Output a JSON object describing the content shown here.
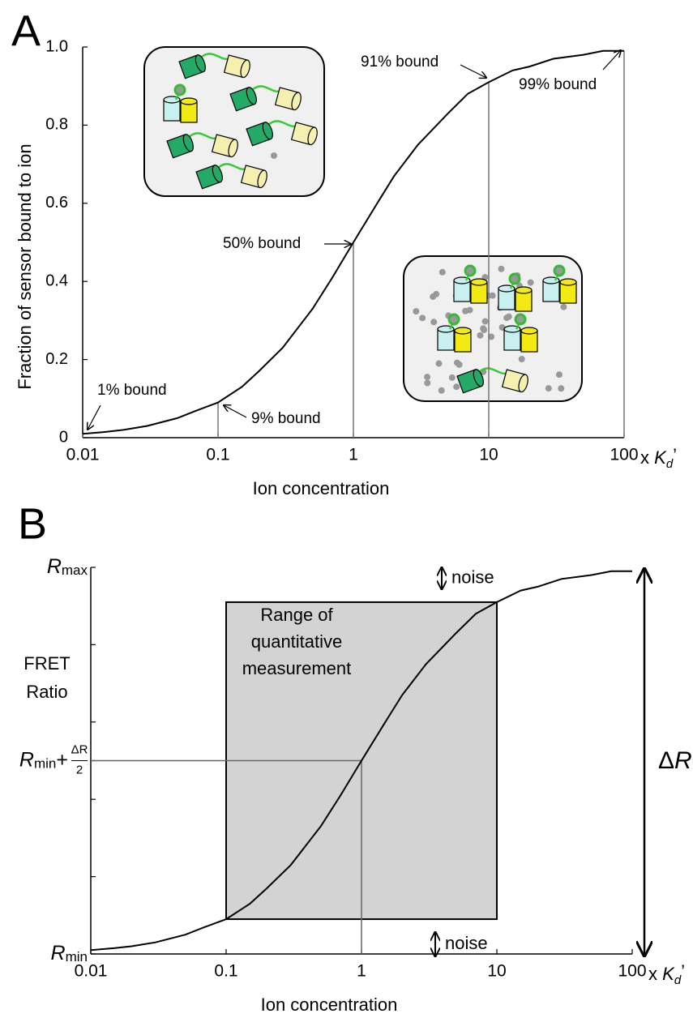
{
  "chart_data": [
    {
      "type": "line",
      "panel_label": "A",
      "xlabel": "Ion concentration",
      "x_unit": [
        "x ",
        "K",
        "d",
        "’"
      ],
      "ylabel": "Fraction of sensor bound to ion",
      "x": [
        0.01,
        0.015,
        0.02,
        0.03,
        0.05,
        0.07,
        0.1,
        0.15,
        0.2,
        0.3,
        0.5,
        0.7,
        1,
        1.5,
        2,
        3,
        5,
        7,
        10,
        15,
        20,
        30,
        50,
        70,
        100
      ],
      "values": [
        0.01,
        0.015,
        0.02,
        0.03,
        0.05,
        0.07,
        0.09,
        0.13,
        0.17,
        0.23,
        0.33,
        0.41,
        0.5,
        0.6,
        0.67,
        0.75,
        0.83,
        0.88,
        0.91,
        0.94,
        0.95,
        0.97,
        0.98,
        0.99,
        0.99
      ],
      "color": "#000000",
      "xscale": "log",
      "xlim": [
        0.01,
        100
      ],
      "xticks": [
        0.01,
        0.1,
        1,
        10,
        100
      ],
      "ylim": [
        0,
        1
      ],
      "yticks": [
        0,
        0.2,
        0.4,
        0.6,
        0.8,
        {
          "value": 1,
          "label": "1.0"
        }
      ],
      "markers": [
        {
          "x": 0.01,
          "y": 0.01,
          "label": "1% bound"
        },
        {
          "x": 0.1,
          "y": 0.09,
          "label": "9% bound"
        },
        {
          "x": 1,
          "y": 0.5,
          "label": "50% bound"
        },
        {
          "x": 10,
          "y": 0.91,
          "label": "91% bound"
        },
        {
          "x": 100,
          "y": 0.99,
          "label": "99% bound"
        }
      ]
    },
    {
      "type": "line",
      "panel_label": "B",
      "xlabel": "Ion concentration",
      "x_unit": [
        "x ",
        "K",
        "d",
        "’"
      ],
      "ylabel": [
        "FRET",
        "Ratio"
      ],
      "x": [
        0.01,
        0.015,
        0.02,
        0.03,
        0.05,
        0.07,
        0.1,
        0.15,
        0.2,
        0.3,
        0.5,
        0.7,
        1,
        1.5,
        2,
        3,
        5,
        7,
        10,
        15,
        20,
        30,
        50,
        70,
        100
      ],
      "values": [
        0.01,
        0.015,
        0.02,
        0.03,
        0.05,
        0.07,
        0.09,
        0.13,
        0.17,
        0.23,
        0.33,
        0.41,
        0.5,
        0.6,
        0.67,
        0.75,
        0.83,
        0.88,
        0.91,
        0.94,
        0.95,
        0.97,
        0.98,
        0.99,
        0.99
      ],
      "color": "#000000",
      "xscale": "log",
      "xlim": [
        0.01,
        100
      ],
      "xticks": [
        0.01,
        0.1,
        1,
        10,
        100
      ],
      "ylim": [
        0,
        1
      ],
      "yticks": [
        {
          "value": 0,
          "label": [
            "R",
            "min"
          ]
        },
        {
          "value": 0.5,
          "label": [
            "R",
            "min",
            "+",
            "ΔR",
            "2"
          ]
        },
        {
          "value": 1,
          "label": [
            "R",
            "max"
          ]
        }
      ],
      "minor_yticks": [
        0.2,
        0.4,
        0.6,
        0.8
      ],
      "range_box": {
        "xlim": [
          0.1,
          10
        ],
        "ylim": [
          0.09,
          0.91
        ],
        "label": [
          "Range of",
          "quantitative",
          "measurement"
        ],
        "color": "#d3d3d3"
      },
      "midpoint": {
        "x": 1,
        "y": 0.5
      },
      "noise_labels": [
        "noise",
        "noise"
      ],
      "delta_label": [
        "Δ",
        "R"
      ]
    }
  ]
}
